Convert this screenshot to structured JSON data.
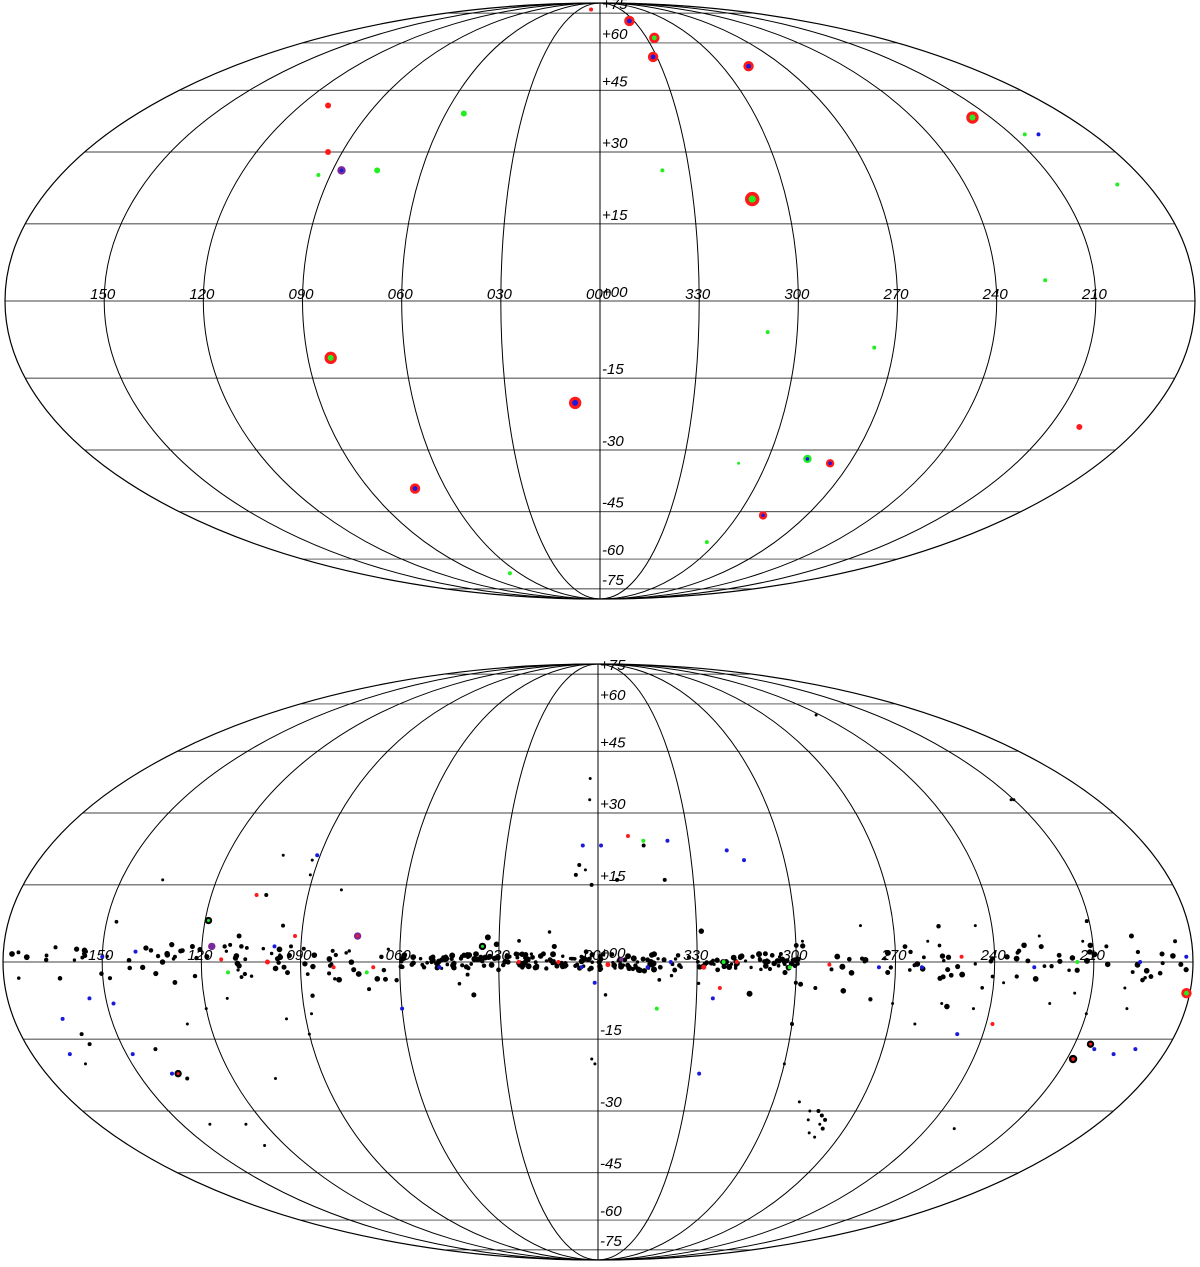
{
  "chart_data": [
    {
      "type": "scatter",
      "projection": "mollweide-like all-sky",
      "x_tick_labels": [
        "150",
        "120",
        "090",
        "060",
        "030",
        "000",
        "330",
        "300",
        "270",
        "240",
        "210"
      ],
      "y_tick_labels": [
        "+75",
        "+60",
        "+45",
        "+30",
        "+15",
        "+00",
        "-15",
        "-30",
        "-45",
        "-60",
        "-75"
      ],
      "grid": true,
      "colors": {
        "red": "#ff1a1a",
        "green": "#22ee22",
        "blue": "#1a1add",
        "black": "#000000",
        "purple": "#7a2a9a"
      },
      "points": [
        {
          "l": 13,
          "b": 78,
          "c": "red",
          "s": 2
        },
        {
          "l": 334,
          "b": 70,
          "c": "blue",
          "ring": "red",
          "s": 4
        },
        {
          "l": 325,
          "b": 62,
          "c": "green",
          "ring": "red",
          "s": 4
        },
        {
          "l": 332,
          "b": 55,
          "c": "blue",
          "ring": "red",
          "s": 4
        },
        {
          "l": 287,
          "b": 52,
          "c": "blue",
          "ring": "red",
          "s": 4
        },
        {
          "l": 109,
          "b": 41,
          "c": "red",
          "s": 3
        },
        {
          "l": 53,
          "b": 39,
          "c": "green",
          "s": 3
        },
        {
          "l": 217,
          "b": 38,
          "c": "green",
          "ring": "red",
          "s": 5
        },
        {
          "l": 205,
          "b": 34,
          "c": "green",
          "s": 2
        },
        {
          "l": 200,
          "b": 34,
          "c": "blue",
          "s": 2
        },
        {
          "l": 95,
          "b": 30,
          "c": "red",
          "s": 3
        },
        {
          "l": 87,
          "b": 26,
          "c": "blue",
          "ring": "purple",
          "s": 3
        },
        {
          "l": 75,
          "b": 26,
          "c": "green",
          "s": 3
        },
        {
          "l": 94,
          "b": 25,
          "c": "green",
          "s": 2
        },
        {
          "l": 339,
          "b": 26,
          "c": "green",
          "s": 2
        },
        {
          "l": 190,
          "b": 23,
          "c": "green",
          "s": 2
        },
        {
          "l": 311,
          "b": 20,
          "c": "green",
          "ring": "red",
          "s": 6
        },
        {
          "l": 225,
          "b": 4,
          "c": "green",
          "s": 2
        },
        {
          "l": 309,
          "b": -6,
          "c": "green",
          "s": 2
        },
        {
          "l": 276,
          "b": -9,
          "c": "green",
          "s": 2
        },
        {
          "l": 83,
          "b": -11,
          "c": "green",
          "ring": "red",
          "s": 5
        },
        {
          "l": 8,
          "b": -20,
          "c": "blue",
          "ring": "red",
          "s": 5
        },
        {
          "l": 200,
          "b": -25,
          "c": "red",
          "s": 3
        },
        {
          "l": 310,
          "b": -33,
          "c": "green",
          "s": 1.5
        },
        {
          "l": 286,
          "b": -32,
          "c": "blue",
          "ring": "green",
          "s": 3
        },
        {
          "l": 277,
          "b": -33,
          "c": "blue",
          "ring": "red",
          "s": 3
        },
        {
          "l": 72,
          "b": -39,
          "c": "blue",
          "ring": "red",
          "s": 4
        },
        {
          "l": 289,
          "b": -46,
          "c": "blue",
          "ring": "red",
          "s": 3
        },
        {
          "l": 305,
          "b": -54,
          "c": "green",
          "s": 2
        },
        {
          "l": 67,
          "b": -66,
          "c": "green",
          "s": 2
        }
      ]
    },
    {
      "type": "scatter",
      "projection": "mollweide-like all-sky",
      "x_tick_labels": [
        "150",
        "120",
        "090",
        "060",
        "030",
        "000",
        "330",
        "300",
        "270",
        "240",
        "210"
      ],
      "y_tick_labels": [
        "+75",
        "+60",
        "+45",
        "+30",
        "+15",
        "+00",
        "-15",
        "-30",
        "-45",
        "-60",
        "-75"
      ],
      "grid": true,
      "plane_band_sources": true,
      "points": [
        {
          "l": 3,
          "b": 38,
          "c": "black",
          "s": 1.5
        },
        {
          "l": 3,
          "b": 33,
          "c": "black",
          "s": 1.5
        },
        {
          "l": 350,
          "b": 25,
          "c": "red",
          "s": 2
        },
        {
          "l": 345,
          "b": 24,
          "c": "green",
          "s": 2
        },
        {
          "l": 5,
          "b": 23,
          "c": "blue",
          "s": 2
        },
        {
          "l": 359,
          "b": 23,
          "c": "blue",
          "s": 2
        },
        {
          "l": 345,
          "b": 23,
          "c": "black",
          "s": 2
        },
        {
          "l": 337,
          "b": 24,
          "c": "blue",
          "s": 2
        },
        {
          "l": 6,
          "b": 19,
          "c": "black",
          "s": 2
        },
        {
          "l": 354,
          "b": 16,
          "c": "black",
          "s": 2
        },
        {
          "l": 7,
          "b": 17,
          "c": "black",
          "s": 2
        },
        {
          "l": 4,
          "b": 18,
          "c": "black",
          "s": 1.5
        },
        {
          "l": 2,
          "b": 15,
          "c": "black",
          "s": 2
        },
        {
          "l": 339,
          "b": 16,
          "c": "black",
          "s": 2
        },
        {
          "l": 318,
          "b": 22,
          "c": "blue",
          "s": 2
        },
        {
          "l": 313,
          "b": 20,
          "c": "blue",
          "s": 2
        },
        {
          "l": 210,
          "b": 33,
          "c": "black",
          "s": 1.5
        },
        {
          "l": 211,
          "b": 33,
          "c": "black",
          "s": 1.5
        },
        {
          "l": 242,
          "b": 56,
          "c": "black",
          "s": 1.5
        },
        {
          "l": 102,
          "b": 21,
          "c": "black",
          "s": 1.5
        },
        {
          "l": 91,
          "b": 21,
          "c": "blue",
          "s": 2
        },
        {
          "l": 92,
          "b": 20,
          "c": "black",
          "s": 1.5
        },
        {
          "l": 137,
          "b": 16,
          "c": "black",
          "s": 1.5
        },
        {
          "l": 91,
          "b": 17,
          "c": "black",
          "s": 1.5
        },
        {
          "l": 103,
          "b": 13,
          "c": "black",
          "s": 2
        },
        {
          "l": 106,
          "b": 13,
          "c": "red",
          "s": 2
        },
        {
          "l": 80,
          "b": 14,
          "c": "black",
          "s": 1.5
        },
        {
          "l": 119,
          "b": 8,
          "c": "green",
          "ring": "black",
          "s": 2.5
        },
        {
          "l": 96,
          "b": 7,
          "c": "black",
          "s": 2
        },
        {
          "l": 92,
          "b": 5,
          "c": "red",
          "s": 2
        },
        {
          "l": 73,
          "b": 5,
          "c": "red",
          "ring": "purple",
          "s": 2.5
        },
        {
          "l": 117,
          "b": 3,
          "c": "purple",
          "ring": "purple",
          "s": 2.5
        },
        {
          "l": 109,
          "b": 5,
          "c": "black",
          "s": 2.5
        },
        {
          "l": 98,
          "b": 3,
          "c": "blue",
          "s": 2
        },
        {
          "l": 93,
          "b": 3,
          "c": "black",
          "s": 2
        },
        {
          "l": 150,
          "b": 1,
          "c": "blue",
          "s": 2
        },
        {
          "l": 155,
          "b": 2,
          "c": "black",
          "s": 2
        },
        {
          "l": 140,
          "b": 2,
          "c": "blue",
          "s": 2
        },
        {
          "l": 128,
          "b": 1,
          "c": "black",
          "s": 2
        },
        {
          "l": 114,
          "b": 0.5,
          "c": "red",
          "s": 2
        },
        {
          "l": 112,
          "b": -2,
          "c": "green",
          "s": 2
        },
        {
          "l": 100,
          "b": 0,
          "c": "red",
          "s": 2.5
        },
        {
          "l": 95,
          "b": -1,
          "c": "black",
          "s": 2.5
        },
        {
          "l": 80,
          "b": -1,
          "c": "red",
          "s": 2
        },
        {
          "l": 70,
          "b": -2,
          "c": "green",
          "s": 2
        },
        {
          "l": 68,
          "b": -1,
          "c": "red",
          "s": 2
        },
        {
          "l": 48,
          "b": -1,
          "c": "blue",
          "s": 2
        },
        {
          "l": 35,
          "b": 3,
          "c": "green",
          "ring": "black",
          "s": 2.5
        },
        {
          "l": 24,
          "b": 0,
          "c": "red",
          "s": 2
        },
        {
          "l": 12,
          "b": 0,
          "c": "red",
          "s": 2
        },
        {
          "l": 5,
          "b": -1,
          "c": "blue",
          "s": 2
        },
        {
          "l": 1,
          "b": -4,
          "c": "blue",
          "s": 2
        },
        {
          "l": 357,
          "b": -0.5,
          "c": "red",
          "s": 2.5
        },
        {
          "l": 353,
          "b": 0.5,
          "c": "purple",
          "s": 2
        },
        {
          "l": 345,
          "b": -1,
          "c": "blue",
          "s": 2
        },
        {
          "l": 338,
          "b": 0,
          "c": "blue",
          "s": 2
        },
        {
          "l": 328,
          "b": -1,
          "c": "red",
          "s": 2.5
        },
        {
          "l": 322,
          "b": 0,
          "c": "green",
          "s": 2
        },
        {
          "l": 318,
          "b": 0,
          "c": "red",
          "s": 2
        },
        {
          "l": 302,
          "b": -1,
          "c": "green",
          "s": 2
        },
        {
          "l": 290,
          "b": -0.5,
          "c": "red",
          "s": 2
        },
        {
          "l": 275,
          "b": -1,
          "c": "blue",
          "s": 2
        },
        {
          "l": 262,
          "b": -1,
          "c": "blue",
          "s": 2
        },
        {
          "l": 250,
          "b": 1,
          "c": "red",
          "s": 2
        },
        {
          "l": 228,
          "b": -1,
          "c": "blue",
          "s": 2
        },
        {
          "l": 215,
          "b": 0,
          "c": "green",
          "s": 2
        },
        {
          "l": 196,
          "b": 0,
          "c": "blue",
          "s": 2
        },
        {
          "l": 182,
          "b": 1,
          "c": "blue",
          "s": 2
        },
        {
          "l": 342,
          "b": -9,
          "c": "green",
          "s": 2
        },
        {
          "l": 323,
          "b": -5,
          "c": "red",
          "s": 2
        },
        {
          "l": 60,
          "b": -9,
          "c": "blue",
          "s": 2
        },
        {
          "l": 155,
          "b": -7,
          "c": "blue",
          "s": 2
        },
        {
          "l": 148,
          "b": -8,
          "c": "blue",
          "s": 2
        },
        {
          "l": 148,
          "b": -18,
          "c": "blue",
          "s": 2
        },
        {
          "l": 137,
          "b": -22,
          "c": "red",
          "ring": "black",
          "s": 2.5
        },
        {
          "l": 165,
          "b": -11,
          "c": "blue",
          "s": 2
        },
        {
          "l": 168,
          "b": -18,
          "c": "blue",
          "s": 2
        },
        {
          "l": 140,
          "b": -17,
          "c": "black",
          "s": 2
        },
        {
          "l": 139,
          "b": -22,
          "c": "blue",
          "s": 2
        },
        {
          "l": 135,
          "b": -23,
          "c": "black",
          "s": 2
        },
        {
          "l": 300,
          "b": -4,
          "c": "black",
          "s": 2
        },
        {
          "l": 294,
          "b": -5,
          "c": "black",
          "s": 2
        },
        {
          "l": 325,
          "b": -7,
          "c": "blue",
          "s": 2
        },
        {
          "l": 327,
          "b": -22,
          "c": "blue",
          "s": 2
        },
        {
          "l": 238,
          "b": -12,
          "c": "red",
          "s": 2
        },
        {
          "l": 248,
          "b": -14,
          "c": "blue",
          "s": 2
        },
        {
          "l": 203,
          "b": -17,
          "c": "blue",
          "s": 2
        },
        {
          "l": 196,
          "b": -18,
          "c": "blue",
          "s": 2
        },
        {
          "l": 205,
          "b": -16,
          "c": "red",
          "ring": "black",
          "s": 2.5
        },
        {
          "l": 208,
          "b": -19,
          "c": "red",
          "ring": "black",
          "s": 3
        },
        {
          "l": 181,
          "b": -6,
          "c": "green",
          "ring": "red",
          "s": 4
        },
        {
          "l": 190,
          "b": -17,
          "c": "blue",
          "s": 2
        },
        {
          "l": 280,
          "b": -33,
          "c": "black",
          "s": 1.5
        },
        {
          "l": 281,
          "b": -31,
          "c": "black",
          "s": 2
        },
        {
          "l": 279,
          "b": -32,
          "c": "black",
          "s": 2
        },
        {
          "l": 283,
          "b": -30,
          "c": "black",
          "s": 2
        },
        {
          "l": 278,
          "b": -34,
          "c": "black",
          "s": 2
        },
        {
          "l": 282,
          "b": -35,
          "c": "black",
          "s": 1.5
        },
        {
          "l": 285,
          "b": -32,
          "c": "black",
          "s": 1.5
        },
        {
          "l": 279,
          "b": -36,
          "c": "black",
          "s": 1.5
        },
        {
          "l": 286,
          "b": -30,
          "c": "black",
          "s": 1.5
        },
        {
          "l": 2,
          "b": -19,
          "c": "black",
          "s": 1.5
        },
        {
          "l": 1,
          "b": -20,
          "c": "black",
          "s": 1.5
        },
        {
          "l": 88,
          "b": -10,
          "c": "black",
          "s": 1.5
        },
        {
          "l": 90,
          "b": -14,
          "c": "black",
          "s": 1.5
        },
        {
          "l": 96,
          "b": -11,
          "c": "black",
          "s": 1.5
        },
        {
          "l": 127,
          "b": -12,
          "c": "black",
          "s": 1.5
        },
        {
          "l": 120,
          "b": -9,
          "c": "black",
          "s": 1.5
        },
        {
          "l": 113,
          "b": -7,
          "c": "black",
          "s": 1.5
        },
        {
          "l": 160,
          "b": -16,
          "c": "black",
          "s": 2
        },
        {
          "l": 161,
          "b": -14,
          "c": "black",
          "s": 2
        },
        {
          "l": 165,
          "b": -20,
          "c": "black",
          "s": 1.5
        },
        {
          "l": 140,
          "b": -33,
          "c": "black",
          "s": 1.5
        },
        {
          "l": 127,
          "b": -33,
          "c": "black",
          "s": 1.5
        },
        {
          "l": 128,
          "b": -38,
          "c": "black",
          "s": 1.5
        },
        {
          "l": 106,
          "b": -23,
          "c": "black",
          "s": 1.5
        },
        {
          "l": 300,
          "b": -12,
          "c": "black",
          "s": 2
        },
        {
          "l": 300,
          "b": -20,
          "c": "black",
          "s": 1.5
        },
        {
          "l": 291,
          "b": -28,
          "c": "black",
          "s": 1.5
        },
        {
          "l": 270,
          "b": -8,
          "c": "black",
          "s": 1.5
        },
        {
          "l": 262,
          "b": -12,
          "c": "black",
          "s": 1.5
        },
        {
          "l": 255,
          "b": -8,
          "c": "black",
          "s": 1.5
        },
        {
          "l": 245,
          "b": -9,
          "c": "black",
          "s": 1.5
        },
        {
          "l": 237,
          "b": -4,
          "c": "black",
          "s": 1.5
        },
        {
          "l": 222,
          "b": -8,
          "c": "black",
          "s": 1.5
        },
        {
          "l": 215,
          "b": -6,
          "c": "black",
          "s": 1.5
        },
        {
          "l": 210,
          "b": -10,
          "c": "black",
          "s": 1.5
        },
        {
          "l": 198,
          "b": -9,
          "c": "black",
          "s": 1.5
        },
        {
          "l": 200,
          "b": -5,
          "c": "black",
          "s": 1.5
        },
        {
          "l": 230,
          "b": -34,
          "c": "black",
          "s": 1.5
        },
        {
          "l": 226,
          "b": 5,
          "c": "black",
          "s": 1.5
        },
        {
          "l": 245,
          "b": 7,
          "c": "black",
          "s": 1.5
        },
        {
          "l": 260,
          "b": 4,
          "c": "black",
          "s": 1.5
        },
        {
          "l": 198,
          "b": 5,
          "c": "black",
          "s": 2.5
        },
        {
          "l": 185,
          "b": 4,
          "c": "black",
          "s": 2
        },
        {
          "l": 206,
          "b": 3,
          "c": "black",
          "s": 2
        },
        {
          "l": 213,
          "b": 4,
          "c": "black",
          "s": 1.5
        },
        {
          "l": 280,
          "b": 7,
          "c": "black",
          "s": 1.5
        },
        {
          "l": 298,
          "b": 4,
          "c": "black",
          "s": 1.5
        }
      ]
    }
  ]
}
